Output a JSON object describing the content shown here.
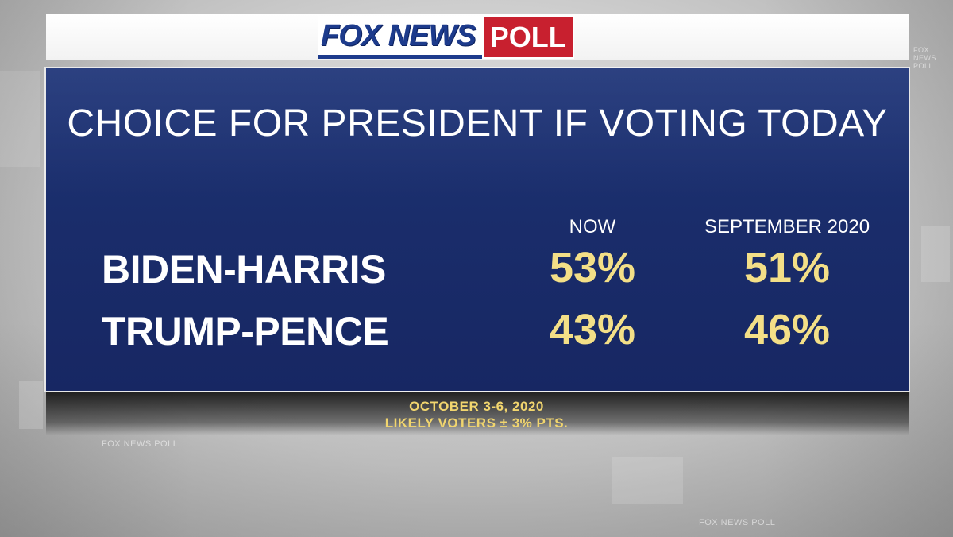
{
  "logo": {
    "fox_news": "FOX NEWS",
    "poll": "POLL",
    "colors": {
      "blue": "#1d3b8c",
      "red": "#c8202f"
    }
  },
  "title": "CHOICE FOR PRESIDENT IF VOTING TODAY",
  "columns": [
    "NOW",
    "SEPTEMBER 2020"
  ],
  "rows": [
    {
      "label": "BIDEN-HARRIS",
      "values": [
        "53%",
        "51%"
      ]
    },
    {
      "label": "TRUMP-PENCE",
      "values": [
        "43%",
        "46%"
      ]
    }
  ],
  "footer": {
    "date": "OCTOBER 3-6, 2020",
    "sample": "LIKELY VOTERS ± 3% PTS."
  },
  "background_watermarks": [
    "FOX NEWS POLL",
    "FOX NEWS POLL",
    "FOX NEWS POLL"
  ],
  "colors": {
    "panel_blue": "#1a2d6b",
    "value_yellow": "#f3df87",
    "footer_yellow": "#f1d56e"
  }
}
